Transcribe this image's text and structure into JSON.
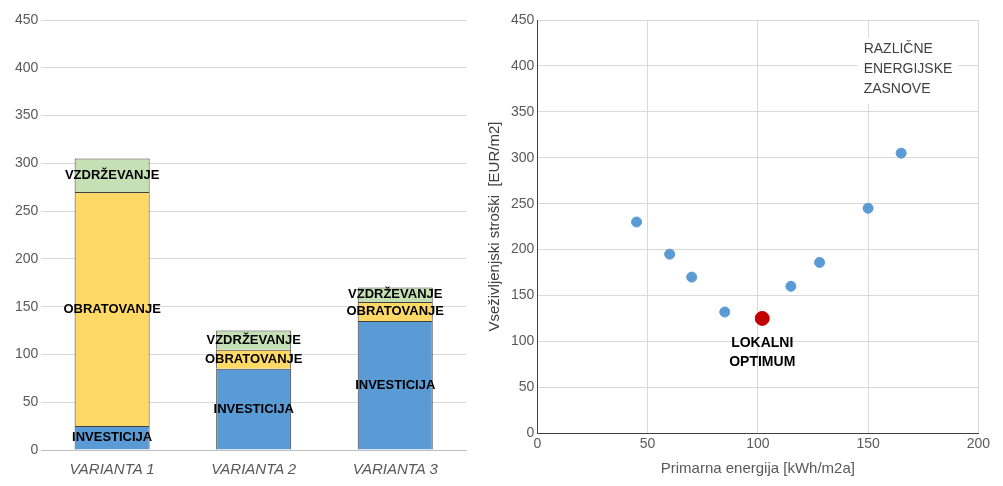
{
  "chart_data": [
    {
      "type": "bar",
      "stacked": true,
      "categories": [
        "VARIANTA 1",
        "VARIANTA 2",
        "VARIANTA 3"
      ],
      "series": [
        {
          "name": "INVESTICIJA",
          "color": "#5b9bd5",
          "values": [
            25,
            85,
            135
          ]
        },
        {
          "name": "OBRATOVANJE",
          "color": "#ffd966",
          "values": [
            245,
            20,
            20
          ]
        },
        {
          "name": "VZDRŽEVANJE",
          "color": "#c5e0b4",
          "values": [
            35,
            20,
            15
          ]
        }
      ],
      "ylim": [
        0,
        450
      ],
      "yticks": [
        0,
        50,
        100,
        150,
        200,
        250,
        300,
        350,
        400,
        450
      ],
      "grid": "y",
      "legend": false
    },
    {
      "type": "scatter",
      "xlabel": "Primarna energija [kWh/m2a]",
      "ylabel": "Vseživljenjski stroški  [EUR/m2]",
      "series": [
        {
          "color": "#5b9bd5",
          "x": [
            45,
            60,
            70,
            85,
            115,
            128,
            150,
            165
          ],
          "values": [
            230,
            195,
            170,
            132,
            160,
            186,
            245,
            305
          ]
        },
        {
          "color": "#c00000",
          "x": [
            102
          ],
          "values": [
            125
          ]
        }
      ],
      "xlim": [
        0,
        200
      ],
      "xticks": [
        0,
        50,
        100,
        150,
        200
      ],
      "ylim": [
        0,
        450
      ],
      "yticks": [
        0,
        50,
        100,
        150,
        200,
        250,
        300,
        350,
        400,
        450
      ],
      "grid": true,
      "legend": false,
      "marker": "circle",
      "annotations": [
        "RAZLIČNE ENERGIJSKE ZASNOVE",
        {
          "text": "LOKALNI OPTIMUM",
          "x": 102,
          "y": 125
        }
      ]
    }
  ]
}
